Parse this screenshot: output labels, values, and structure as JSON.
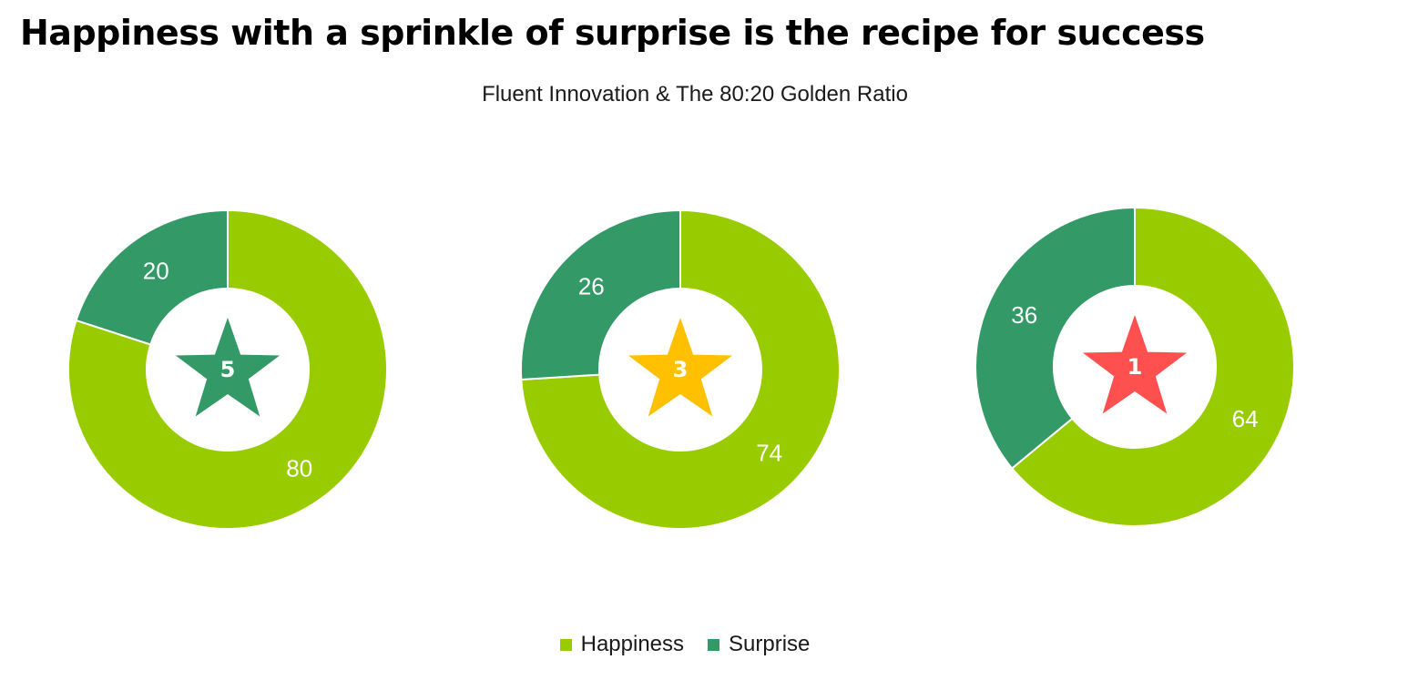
{
  "chart_data": {
    "type": "pie",
    "title": "Happiness with a sprinkle of surprise is the recipe for success",
    "subtitle": "Fluent Innovation & The 80:20 Golden Ratio",
    "series_names": [
      "Happiness",
      "Surprise"
    ],
    "colors": {
      "happiness": "#99CC00",
      "surprise": "#339966"
    },
    "legend_position": "bottom-center",
    "charts": [
      {
        "rating": "5",
        "star_color": "#339966",
        "values": [
          80,
          20
        ]
      },
      {
        "rating": "3",
        "star_color": "#FFC000",
        "values": [
          74,
          26
        ]
      },
      {
        "rating": "1",
        "star_color": "#FF5050",
        "values": [
          64,
          36
        ]
      }
    ]
  }
}
